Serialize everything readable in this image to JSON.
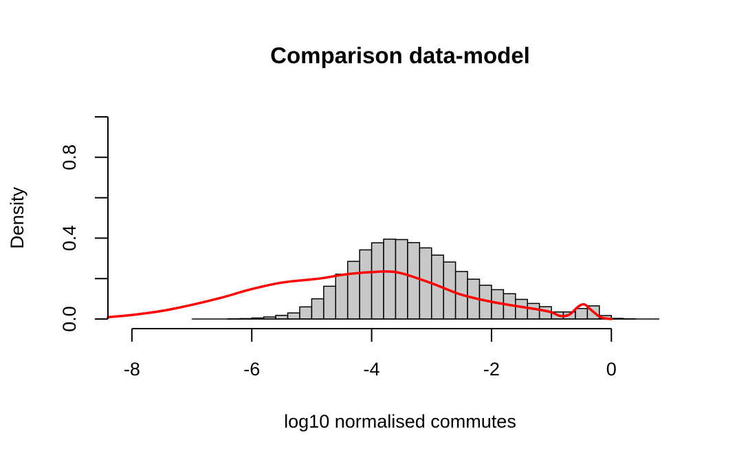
{
  "chart_data": {
    "type": "bar",
    "title": "Comparison data-model",
    "xlabel": "log10 normalised commutes",
    "ylabel": "Density",
    "xlim": [
      -8.4,
      0.8
    ],
    "ylim": [
      0,
      1.0
    ],
    "x_ticks": [
      -8,
      -6,
      -4,
      -2,
      0
    ],
    "x_tick_labels": [
      "-8",
      "-6",
      "-4",
      "-2",
      "0"
    ],
    "y_ticks": [
      0.0,
      0.2,
      0.4,
      0.6,
      0.8,
      1.0
    ],
    "y_tick_labels": [
      "0.0",
      "",
      "0.4",
      "",
      "0.8",
      ""
    ],
    "grid": false,
    "histogram": {
      "bin_width": 0.2,
      "color": "#c8c8c8",
      "bin_starts": [
        -7.0,
        -6.8,
        -6.6,
        -6.4,
        -6.2,
        -6.0,
        -5.8,
        -5.6,
        -5.4,
        -5.2,
        -5.0,
        -4.8,
        -4.6,
        -4.4,
        -4.2,
        -4.0,
        -3.8,
        -3.6,
        -3.4,
        -3.2,
        -3.0,
        -2.8,
        -2.6,
        -2.4,
        -2.2,
        -2.0,
        -1.8,
        -1.6,
        -1.4,
        -1.2,
        -1.0,
        -0.8,
        -0.6,
        -0.4,
        -0.2,
        0.0,
        0.2,
        0.4,
        0.6
      ],
      "values": [
        0.0,
        0.0,
        0.0,
        0.001,
        0.002,
        0.005,
        0.01,
        0.018,
        0.03,
        0.06,
        0.1,
        0.162,
        0.222,
        0.285,
        0.342,
        0.377,
        0.395,
        0.393,
        0.378,
        0.352,
        0.316,
        0.282,
        0.235,
        0.197,
        0.167,
        0.145,
        0.125,
        0.097,
        0.077,
        0.061,
        0.035,
        0.035,
        0.052,
        0.065,
        0.017,
        0.003,
        0.001,
        0.0,
        0.0
      ]
    },
    "series": [
      {
        "color": "#ff0000",
        "x": [
          -8.4,
          -8.0,
          -7.5,
          -7.0,
          -6.5,
          -6.0,
          -5.5,
          -5.0,
          -4.8,
          -4.5,
          -4.2,
          -4.0,
          -3.75,
          -3.5,
          -3.0,
          -2.5,
          -2.0,
          -1.5,
          -1.2,
          -1.0,
          -0.85,
          -0.7,
          -0.55,
          -0.45,
          -0.35,
          -0.2,
          -0.1,
          0.0
        ],
        "y": [
          0.009,
          0.02,
          0.04,
          0.07,
          0.106,
          0.148,
          0.18,
          0.196,
          0.203,
          0.218,
          0.228,
          0.232,
          0.235,
          0.226,
          0.177,
          0.12,
          0.085,
          0.06,
          0.046,
          0.033,
          0.015,
          0.022,
          0.062,
          0.072,
          0.048,
          0.012,
          0.003,
          0.0
        ]
      }
    ]
  }
}
